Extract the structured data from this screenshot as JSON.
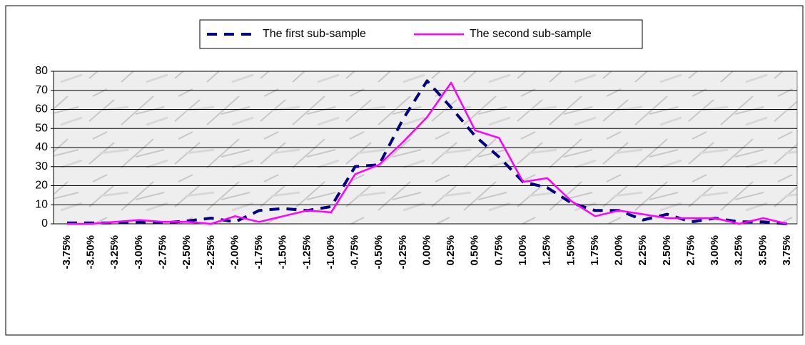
{
  "chart_data": {
    "type": "line",
    "categories": [
      "-3.75%",
      "-3.50%",
      "-3.25%",
      "-3.00%",
      "-2.75%",
      "-2.50%",
      "-2.25%",
      "-2.00%",
      "-1.75%",
      "-1.50%",
      "-1.25%",
      "-1.00%",
      "-0.75%",
      "-0.50%",
      "-0.25%",
      "0.00%",
      "0.25%",
      "0.50%",
      "0.75%",
      "1.00%",
      "1.25%",
      "1.50%",
      "1.75%",
      "2.00%",
      "2.25%",
      "2.50%",
      "2.75%",
      "3.00%",
      "3.25%",
      "3.50%",
      "3.75%"
    ],
    "series": [
      {
        "name": "The first sub-sample",
        "color": "#000080",
        "style": "dashed",
        "values": [
          0.5,
          0.5,
          0.5,
          1,
          0.5,
          1.5,
          3,
          1,
          7,
          8,
          7,
          9,
          30,
          31,
          55,
          75,
          61,
          46,
          35,
          22,
          19,
          11,
          7,
          7,
          2,
          5,
          1,
          3,
          1,
          1,
          0
        ]
      },
      {
        "name": "The second sub-sample",
        "color": "#ff00ff",
        "style": "solid",
        "values": [
          0,
          0,
          1,
          2,
          1,
          1,
          0,
          4,
          1,
          4,
          7,
          6,
          26,
          31,
          43,
          56,
          74,
          49,
          45,
          22,
          24,
          12,
          4,
          7,
          5,
          3,
          3,
          3,
          0,
          3,
          0
        ]
      }
    ],
    "ylim": [
      0,
      80
    ],
    "yticks": [
      0,
      10,
      20,
      30,
      40,
      50,
      60,
      70,
      80
    ],
    "grid": true,
    "legend": "top"
  }
}
